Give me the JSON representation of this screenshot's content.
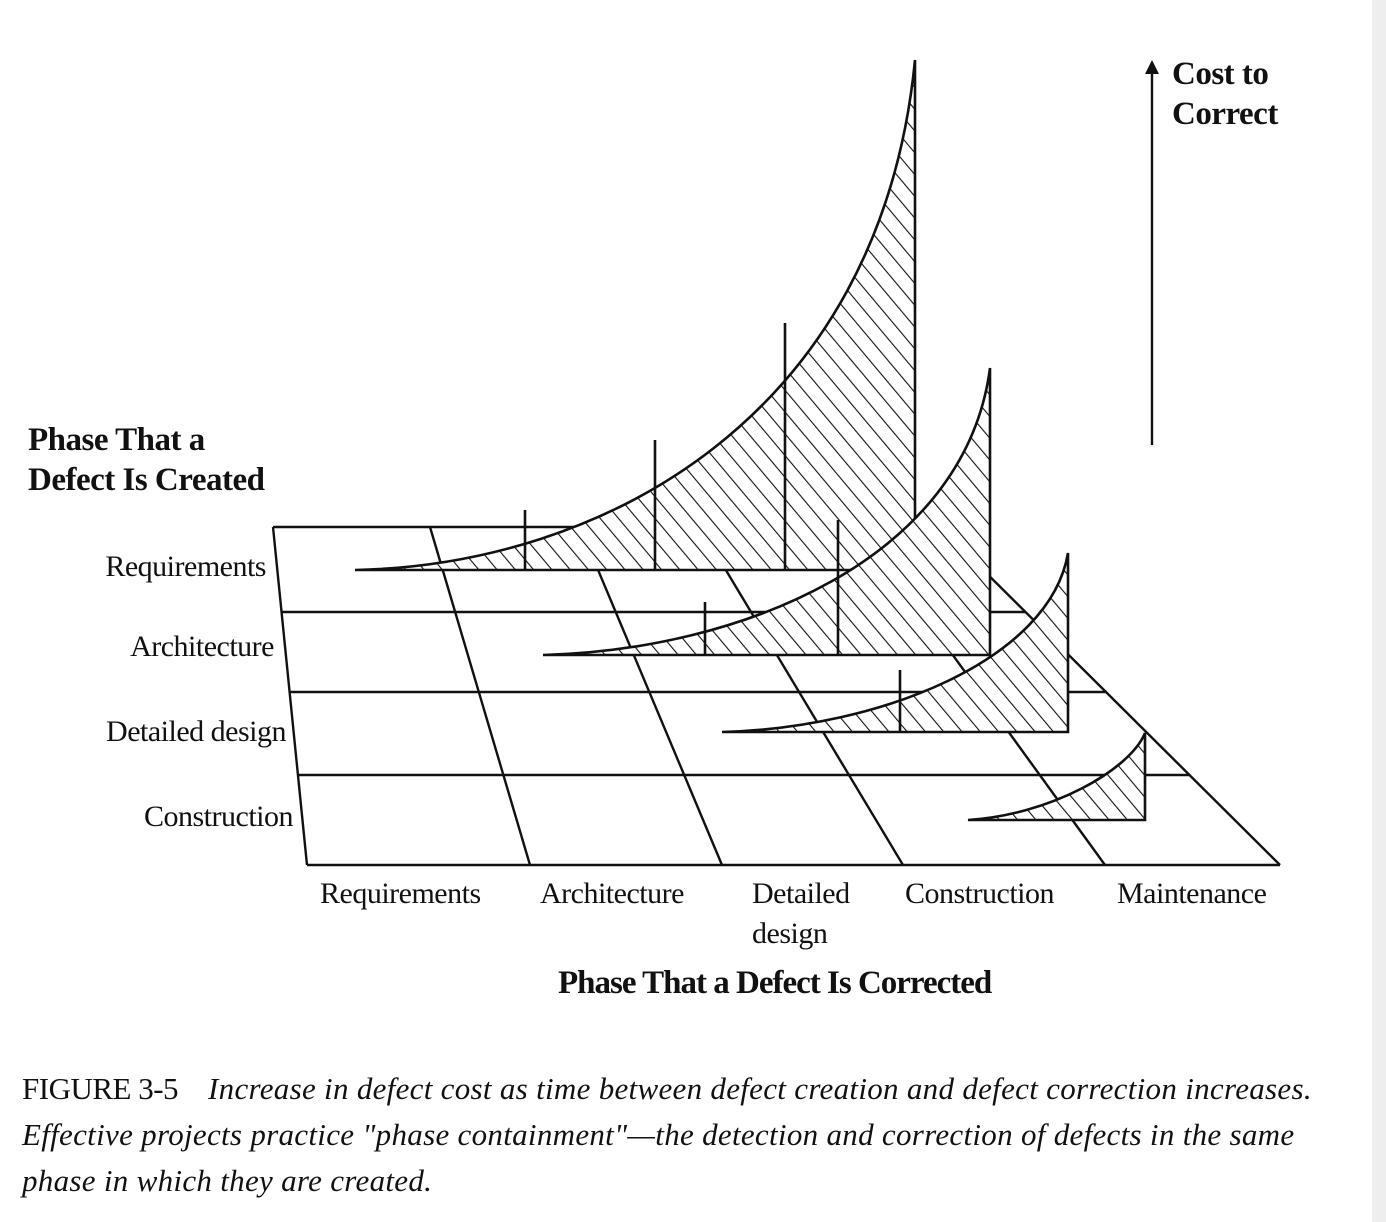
{
  "diagram": {
    "vertical_axis_label": [
      "Cost to",
      "Correct"
    ],
    "row_axis_title": [
      "Phase That a",
      "Defect Is Created"
    ],
    "rows": [
      "Requirements",
      "Architecture",
      "Detailed design",
      "Construction"
    ],
    "column_axis_title": "Phase That a Defect Is Corrected",
    "columns": [
      "Requirements",
      "Architecture",
      "Detailed",
      "design",
      "Construction",
      "Maintenance"
    ]
  },
  "caption": {
    "figure_label": "FIGURE 3-5",
    "text": "Increase in defect cost as time between defect creation and defect correction increases. Effective projects practice \"phase containment\"—the detection and correction of defects in the same phase in which they are created."
  }
}
